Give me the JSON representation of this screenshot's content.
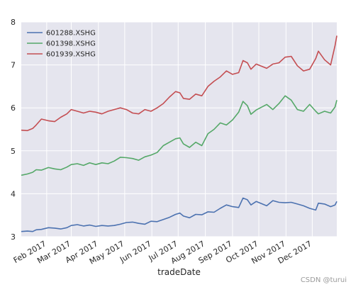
{
  "chart_data": {
    "type": "line",
    "xlabel": "tradeDate",
    "ylabel": "",
    "ylim": [
      3,
      8
    ],
    "xlim": [
      "2017-01-03",
      "2017-12-29"
    ],
    "yticks": [
      3,
      4,
      5,
      6,
      7,
      8
    ],
    "xticks": [
      {
        "date": "2017-02-01",
        "label": "Feb 2017"
      },
      {
        "date": "2017-03-01",
        "label": "Mar 2017"
      },
      {
        "date": "2017-04-01",
        "label": "Apr 2017"
      },
      {
        "date": "2017-05-01",
        "label": "May 2017"
      },
      {
        "date": "2017-06-01",
        "label": "Jun 2017"
      },
      {
        "date": "2017-07-01",
        "label": "Jul 2017"
      },
      {
        "date": "2017-08-01",
        "label": "Aug 2017"
      },
      {
        "date": "2017-09-01",
        "label": "Sep 2017"
      },
      {
        "date": "2017-10-01",
        "label": "Oct 2017"
      },
      {
        "date": "2017-11-01",
        "label": "Nov 2017"
      },
      {
        "date": "2017-12-01",
        "label": "Dec 2017"
      }
    ],
    "grid": true,
    "legend_position": "top-left",
    "series": [
      {
        "name": "601288.XSHG",
        "color": "#4c72b0",
        "points": [
          [
            "2017-01-03",
            3.12
          ],
          [
            "2017-01-10",
            3.13
          ],
          [
            "2017-01-16",
            3.12
          ],
          [
            "2017-01-20",
            3.16
          ],
          [
            "2017-01-26",
            3.17
          ],
          [
            "2017-02-03",
            3.21
          ],
          [
            "2017-02-10",
            3.2
          ],
          [
            "2017-02-17",
            3.18
          ],
          [
            "2017-02-24",
            3.21
          ],
          [
            "2017-03-01",
            3.26
          ],
          [
            "2017-03-08",
            3.28
          ],
          [
            "2017-03-15",
            3.25
          ],
          [
            "2017-03-22",
            3.27
          ],
          [
            "2017-03-29",
            3.24
          ],
          [
            "2017-04-05",
            3.26
          ],
          [
            "2017-04-12",
            3.25
          ],
          [
            "2017-04-19",
            3.26
          ],
          [
            "2017-04-26",
            3.29
          ],
          [
            "2017-05-03",
            3.33
          ],
          [
            "2017-05-10",
            3.34
          ],
          [
            "2017-05-17",
            3.31
          ],
          [
            "2017-05-24",
            3.29
          ],
          [
            "2017-05-31",
            3.36
          ],
          [
            "2017-06-07",
            3.35
          ],
          [
            "2017-06-14",
            3.4
          ],
          [
            "2017-06-21",
            3.45
          ],
          [
            "2017-06-28",
            3.52
          ],
          [
            "2017-07-03",
            3.55
          ],
          [
            "2017-07-07",
            3.48
          ],
          [
            "2017-07-14",
            3.44
          ],
          [
            "2017-07-21",
            3.52
          ],
          [
            "2017-07-28",
            3.51
          ],
          [
            "2017-08-04",
            3.58
          ],
          [
            "2017-08-11",
            3.57
          ],
          [
            "2017-08-18",
            3.66
          ],
          [
            "2017-08-25",
            3.74
          ],
          [
            "2017-09-01",
            3.7
          ],
          [
            "2017-09-08",
            3.68
          ],
          [
            "2017-09-13",
            3.9
          ],
          [
            "2017-09-18",
            3.86
          ],
          [
            "2017-09-22",
            3.74
          ],
          [
            "2017-09-28",
            3.82
          ],
          [
            "2017-10-10",
            3.72
          ],
          [
            "2017-10-17",
            3.84
          ],
          [
            "2017-10-24",
            3.8
          ],
          [
            "2017-10-31",
            3.79
          ],
          [
            "2017-11-07",
            3.8
          ],
          [
            "2017-11-14",
            3.76
          ],
          [
            "2017-11-21",
            3.72
          ],
          [
            "2017-11-28",
            3.66
          ],
          [
            "2017-12-05",
            3.62
          ],
          [
            "2017-12-08",
            3.78
          ],
          [
            "2017-12-15",
            3.76
          ],
          [
            "2017-12-22",
            3.7
          ],
          [
            "2017-12-27",
            3.74
          ],
          [
            "2017-12-29",
            3.82
          ]
        ]
      },
      {
        "name": "601398.XSHG",
        "color": "#55a868",
        "points": [
          [
            "2017-01-03",
            4.43
          ],
          [
            "2017-01-10",
            4.46
          ],
          [
            "2017-01-16",
            4.5
          ],
          [
            "2017-01-20",
            4.56
          ],
          [
            "2017-01-26",
            4.55
          ],
          [
            "2017-02-03",
            4.61
          ],
          [
            "2017-02-10",
            4.58
          ],
          [
            "2017-02-17",
            4.56
          ],
          [
            "2017-02-24",
            4.62
          ],
          [
            "2017-03-01",
            4.68
          ],
          [
            "2017-03-08",
            4.7
          ],
          [
            "2017-03-15",
            4.66
          ],
          [
            "2017-03-22",
            4.72
          ],
          [
            "2017-03-29",
            4.68
          ],
          [
            "2017-04-05",
            4.72
          ],
          [
            "2017-04-12",
            4.7
          ],
          [
            "2017-04-19",
            4.76
          ],
          [
            "2017-04-26",
            4.85
          ],
          [
            "2017-05-03",
            4.84
          ],
          [
            "2017-05-10",
            4.82
          ],
          [
            "2017-05-17",
            4.78
          ],
          [
            "2017-05-24",
            4.86
          ],
          [
            "2017-05-31",
            4.9
          ],
          [
            "2017-06-07",
            4.96
          ],
          [
            "2017-06-14",
            5.12
          ],
          [
            "2017-06-21",
            5.2
          ],
          [
            "2017-06-28",
            5.28
          ],
          [
            "2017-07-03",
            5.3
          ],
          [
            "2017-07-07",
            5.16
          ],
          [
            "2017-07-14",
            5.08
          ],
          [
            "2017-07-21",
            5.2
          ],
          [
            "2017-07-28",
            5.12
          ],
          [
            "2017-08-04",
            5.4
          ],
          [
            "2017-08-11",
            5.5
          ],
          [
            "2017-08-18",
            5.65
          ],
          [
            "2017-08-25",
            5.6
          ],
          [
            "2017-09-01",
            5.72
          ],
          [
            "2017-09-08",
            5.9
          ],
          [
            "2017-09-13",
            6.15
          ],
          [
            "2017-09-18",
            6.05
          ],
          [
            "2017-09-22",
            5.85
          ],
          [
            "2017-09-28",
            5.95
          ],
          [
            "2017-10-10",
            6.08
          ],
          [
            "2017-10-17",
            5.96
          ],
          [
            "2017-10-24",
            6.1
          ],
          [
            "2017-10-31",
            6.28
          ],
          [
            "2017-11-07",
            6.18
          ],
          [
            "2017-11-14",
            5.96
          ],
          [
            "2017-11-21",
            5.92
          ],
          [
            "2017-11-28",
            6.08
          ],
          [
            "2017-12-05",
            5.92
          ],
          [
            "2017-12-08",
            5.86
          ],
          [
            "2017-12-15",
            5.92
          ],
          [
            "2017-12-22",
            5.88
          ],
          [
            "2017-12-27",
            6.02
          ],
          [
            "2017-12-29",
            6.18
          ]
        ]
      },
      {
        "name": "601939.XSHG",
        "color": "#c44e52",
        "points": [
          [
            "2017-01-03",
            5.48
          ],
          [
            "2017-01-10",
            5.47
          ],
          [
            "2017-01-16",
            5.52
          ],
          [
            "2017-01-20",
            5.6
          ],
          [
            "2017-01-26",
            5.74
          ],
          [
            "2017-02-03",
            5.7
          ],
          [
            "2017-02-10",
            5.68
          ],
          [
            "2017-02-17",
            5.78
          ],
          [
            "2017-02-24",
            5.86
          ],
          [
            "2017-03-01",
            5.96
          ],
          [
            "2017-03-08",
            5.92
          ],
          [
            "2017-03-15",
            5.88
          ],
          [
            "2017-03-22",
            5.92
          ],
          [
            "2017-03-29",
            5.9
          ],
          [
            "2017-04-05",
            5.86
          ],
          [
            "2017-04-12",
            5.92
          ],
          [
            "2017-04-19",
            5.96
          ],
          [
            "2017-04-26",
            6.0
          ],
          [
            "2017-05-03",
            5.96
          ],
          [
            "2017-05-10",
            5.88
          ],
          [
            "2017-05-17",
            5.86
          ],
          [
            "2017-05-24",
            5.96
          ],
          [
            "2017-05-31",
            5.92
          ],
          [
            "2017-06-07",
            6.0
          ],
          [
            "2017-06-14",
            6.1
          ],
          [
            "2017-06-21",
            6.25
          ],
          [
            "2017-06-28",
            6.38
          ],
          [
            "2017-07-03",
            6.35
          ],
          [
            "2017-07-07",
            6.22
          ],
          [
            "2017-07-14",
            6.2
          ],
          [
            "2017-07-21",
            6.32
          ],
          [
            "2017-07-28",
            6.28
          ],
          [
            "2017-08-04",
            6.5
          ],
          [
            "2017-08-11",
            6.62
          ],
          [
            "2017-08-18",
            6.72
          ],
          [
            "2017-08-25",
            6.86
          ],
          [
            "2017-09-01",
            6.78
          ],
          [
            "2017-09-08",
            6.82
          ],
          [
            "2017-09-13",
            7.1
          ],
          [
            "2017-09-18",
            7.05
          ],
          [
            "2017-09-22",
            6.9
          ],
          [
            "2017-09-28",
            7.02
          ],
          [
            "2017-10-10",
            6.92
          ],
          [
            "2017-10-17",
            7.02
          ],
          [
            "2017-10-24",
            7.05
          ],
          [
            "2017-10-31",
            7.18
          ],
          [
            "2017-11-07",
            7.2
          ],
          [
            "2017-11-14",
            6.98
          ],
          [
            "2017-11-21",
            6.86
          ],
          [
            "2017-11-28",
            6.9
          ],
          [
            "2017-12-05",
            7.15
          ],
          [
            "2017-12-08",
            7.32
          ],
          [
            "2017-12-15",
            7.12
          ],
          [
            "2017-12-22",
            7.0
          ],
          [
            "2017-12-27",
            7.45
          ],
          [
            "2017-12-29",
            7.68
          ]
        ]
      }
    ]
  },
  "watermark": "CSDN @turui",
  "colors": {
    "plot_background": "#e5e5ee",
    "grid": "#ffffff",
    "text": "#262626"
  }
}
